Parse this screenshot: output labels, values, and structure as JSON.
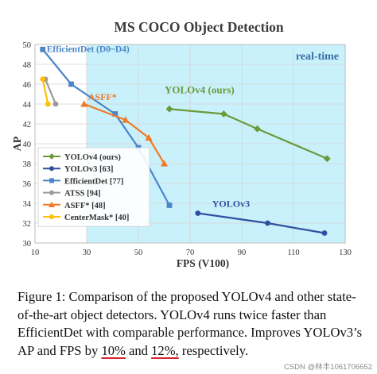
{
  "chart_data": {
    "type": "line",
    "title": "MS COCO Object Detection",
    "xlabel": "FPS (V100)",
    "ylabel": "AP",
    "xlim": [
      10,
      130
    ],
    "ylim": [
      30,
      50
    ],
    "xticks": [
      10,
      30,
      50,
      70,
      90,
      110,
      130
    ],
    "yticks": [
      30,
      32,
      34,
      36,
      38,
      40,
      42,
      44,
      46,
      48,
      50
    ],
    "grid": true,
    "shaded_region": {
      "label": "real-time",
      "x_from": 30,
      "x_to": 130,
      "color": "#c9f1fb"
    },
    "legend_position": "left",
    "series": [
      {
        "name": "YOLOv4 (ours)",
        "color": "#6a9a3a",
        "marker": "diamond",
        "label": "YOLOv4 (ours)",
        "x": [
          62,
          83,
          96,
          123
        ],
        "y": [
          43.5,
          43.0,
          41.5,
          38.5
        ]
      },
      {
        "name": "YOLOv3 [63]",
        "color": "#2f4f9f",
        "marker": "circle",
        "label": "YOLOv3",
        "x": [
          73,
          100,
          122
        ],
        "y": [
          33.0,
          32.0,
          31.0
        ]
      },
      {
        "name": "EfficientDet [77]",
        "color": "#4a86c8",
        "marker": "square",
        "label": "EfficientDet (D0~D4)",
        "x": [
          13,
          24,
          41,
          50,
          62
        ],
        "y": [
          49.5,
          46.0,
          43.0,
          39.6,
          33.8
        ]
      },
      {
        "name": "ATSS [94]",
        "color": "#9a9a9a",
        "marker": "circle",
        "label": "",
        "x": [
          14,
          18
        ],
        "y": [
          46.5,
          44.0
        ]
      },
      {
        "name": "ASFF* [48]",
        "color": "#f07a2a",
        "marker": "triangle",
        "label": "ASFF*",
        "x": [
          29,
          45,
          54,
          60
        ],
        "y": [
          44.0,
          42.4,
          40.6,
          38.0
        ]
      },
      {
        "name": "CenterMask* [40]",
        "color": "#ffc000",
        "marker": "circle",
        "label": "",
        "x": [
          13,
          15
        ],
        "y": [
          46.5,
          44.0
        ]
      }
    ]
  },
  "caption": {
    "part1": "Figure 1: Comparison of the proposed YOLOv4 and other state-of-the-art object detectors. YOLOv4 runs twice faster than EfficientDet with comparable performance. Improves YOLOv3’s AP and FPS by ",
    "hl1": "10%",
    "part2": " and ",
    "hl2": "12%,",
    "part3": " respectively."
  },
  "watermark": "CSDN @林丰1061706652"
}
